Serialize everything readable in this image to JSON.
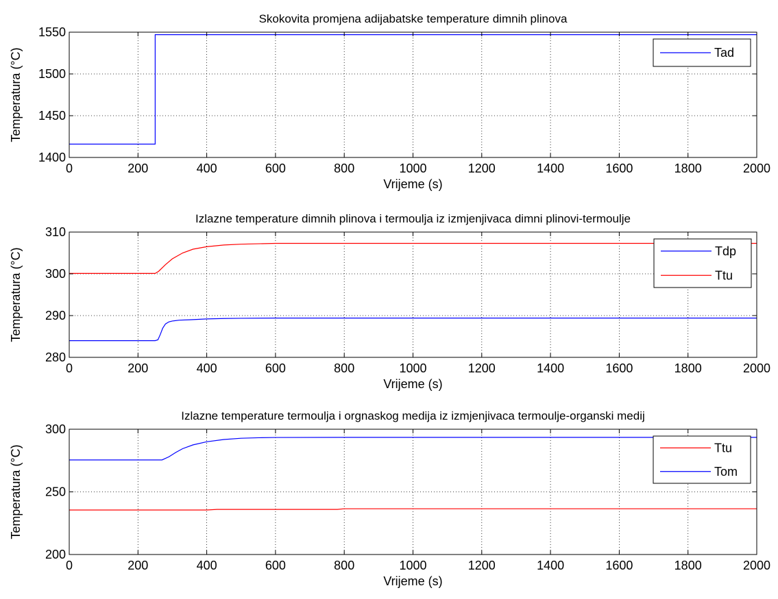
{
  "chart_data": [
    {
      "type": "line",
      "title": "Skokovita promjena adijabatske temperature dimnih plinova",
      "xlabel": "Vrijeme (s)",
      "ylabel": "Temperatura (°C)",
      "xlim": [
        0,
        2000
      ],
      "ylim": [
        1400,
        1550
      ],
      "xticks": [
        0,
        200,
        400,
        600,
        800,
        1000,
        1200,
        1400,
        1600,
        1800,
        2000
      ],
      "yticks": [
        1400,
        1450,
        1500,
        1550
      ],
      "grid": true,
      "legend_position": "top-right",
      "series": [
        {
          "name": "Tad",
          "color": "#0000ff",
          "x": [
            0,
            250,
            250,
            2000
          ],
          "y": [
            1416,
            1416,
            1547,
            1547
          ]
        }
      ]
    },
    {
      "type": "line",
      "title": "Izlazne temperature dimnih plinova i termoulja iz izmjenjivaca dimni plinovi-termoulje",
      "xlabel": "Vrijeme (s)",
      "ylabel": "Temperatura (°C)",
      "xlim": [
        0,
        2000
      ],
      "ylim": [
        280,
        310
      ],
      "xticks": [
        0,
        200,
        400,
        600,
        800,
        1000,
        1200,
        1400,
        1600,
        1800,
        2000
      ],
      "yticks": [
        280,
        290,
        300,
        310
      ],
      "grid": true,
      "legend_position": "top-right",
      "series": [
        {
          "name": "Tdp",
          "color": "#0000ff",
          "x": [
            0,
            250,
            258,
            265,
            272,
            280,
            290,
            300,
            320,
            350,
            400,
            450,
            500,
            600,
            800,
            1000,
            2000
          ],
          "y": [
            284,
            284,
            284.2,
            285.5,
            287,
            288,
            288.5,
            288.7,
            288.9,
            289.0,
            289.2,
            289.3,
            289.35,
            289.4,
            289.4,
            289.4,
            289.4
          ]
        },
        {
          "name": "Ttu",
          "color": "#ff0000",
          "x": [
            0,
            250,
            260,
            280,
            300,
            330,
            360,
            400,
            450,
            500,
            550,
            600,
            800,
            1000,
            2000
          ],
          "y": [
            300.1,
            300.1,
            300.6,
            302.2,
            303.6,
            305.0,
            305.9,
            306.5,
            306.9,
            307.1,
            307.2,
            307.3,
            307.3,
            307.3,
            307.3
          ]
        }
      ]
    },
    {
      "type": "line",
      "title": "Izlazne temperature termoulja i orgnaskog medija iz izmjenjivaca termoulje-organski medij",
      "xlabel": "Vrijeme (s)",
      "ylabel": "Temperatura (°C)",
      "xlim": [
        0,
        2000
      ],
      "ylim": [
        200,
        300
      ],
      "xticks": [
        0,
        200,
        400,
        600,
        800,
        1000,
        1200,
        1400,
        1600,
        1800,
        2000
      ],
      "yticks": [
        200,
        250,
        300
      ],
      "grid": true,
      "legend_position": "top-right",
      "series": [
        {
          "name": "Ttu",
          "color": "#ff0000",
          "x": [
            0,
            400,
            430,
            780,
            800,
            2000
          ],
          "y": [
            235.5,
            235.5,
            236.0,
            236.0,
            236.5,
            236.5
          ]
        },
        {
          "name": "Tom",
          "color": "#0000ff",
          "x": [
            0,
            270,
            290,
            310,
            330,
            360,
            400,
            450,
            500,
            550,
            600,
            800,
            2000
          ],
          "y": [
            275.5,
            275.5,
            278.0,
            281.5,
            284.5,
            287.5,
            290.0,
            291.8,
            292.8,
            293.2,
            293.4,
            293.5,
            293.5
          ]
        }
      ]
    }
  ]
}
